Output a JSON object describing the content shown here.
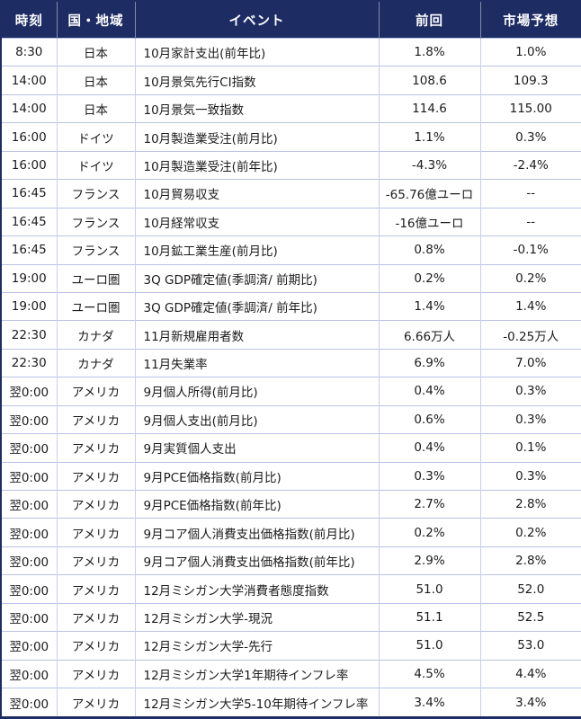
{
  "colors": {
    "header_background": "#1e2c64",
    "header_text": "#ffffff",
    "grid_line": "#b9c3e6",
    "body_text": "#1b1b1b",
    "row_background": "#ffffff"
  },
  "table": {
    "columns": [
      {
        "key": "time",
        "label": "時刻"
      },
      {
        "key": "region",
        "label": "国・地域"
      },
      {
        "key": "event",
        "label": "イベント"
      },
      {
        "key": "previous",
        "label": "前回"
      },
      {
        "key": "forecast",
        "label": "市場予想"
      }
    ],
    "rows": [
      {
        "time": "8:30",
        "region": "日本",
        "event": "10月家計支出(前年比)",
        "previous": "1.8%",
        "forecast": "1.0%"
      },
      {
        "time": "14:00",
        "region": "日本",
        "event": "10月景気先行CI指数",
        "previous": "108.6",
        "forecast": "109.3"
      },
      {
        "time": "14:00",
        "region": "日本",
        "event": "10月景気一致指数",
        "previous": "114.6",
        "forecast": "115.00"
      },
      {
        "time": "16:00",
        "region": "ドイツ",
        "event": "10月製造業受注(前月比)",
        "previous": "1.1%",
        "forecast": "0.3%"
      },
      {
        "time": "16:00",
        "region": "ドイツ",
        "event": "10月製造業受注(前年比)",
        "previous": "-4.3%",
        "forecast": "-2.4%"
      },
      {
        "time": "16:45",
        "region": "フランス",
        "event": "10月貿易収支",
        "previous": "-65.76億ユーロ",
        "forecast": "--"
      },
      {
        "time": "16:45",
        "region": "フランス",
        "event": "10月経常収支",
        "previous": "-16億ユーロ",
        "forecast": "--"
      },
      {
        "time": "16:45",
        "region": "フランス",
        "event": "10月鉱工業生産(前月比)",
        "previous": "0.8%",
        "forecast": "-0.1%"
      },
      {
        "time": "19:00",
        "region": "ユーロ圏",
        "event": "3Q GDP確定値(季調済/ 前期比)",
        "previous": "0.2%",
        "forecast": "0.2%"
      },
      {
        "time": "19:00",
        "region": "ユーロ圏",
        "event": "3Q GDP確定値(季調済/ 前年比)",
        "previous": "1.4%",
        "forecast": "1.4%"
      },
      {
        "time": "22:30",
        "region": "カナダ",
        "event": "11月新規雇用者数",
        "previous": "6.66万人",
        "forecast": "-0.25万人"
      },
      {
        "time": "22:30",
        "region": "カナダ",
        "event": "11月失業率",
        "previous": "6.9%",
        "forecast": "7.0%"
      },
      {
        "time": "翌0:00",
        "region": "アメリカ",
        "event": "9月個人所得(前月比)",
        "previous": "0.4%",
        "forecast": "0.3%"
      },
      {
        "time": "翌0:00",
        "region": "アメリカ",
        "event": "9月個人支出(前月比)",
        "previous": "0.6%",
        "forecast": "0.3%"
      },
      {
        "time": "翌0:00",
        "region": "アメリカ",
        "event": "9月実質個人支出",
        "previous": "0.4%",
        "forecast": "0.1%"
      },
      {
        "time": "翌0:00",
        "region": "アメリカ",
        "event": "9月PCE価格指数(前月比)",
        "previous": "0.3%",
        "forecast": "0.3%"
      },
      {
        "time": "翌0:00",
        "region": "アメリカ",
        "event": "9月PCE価格指数(前年比)",
        "previous": "2.7%",
        "forecast": "2.8%"
      },
      {
        "time": "翌0:00",
        "region": "アメリカ",
        "event": "9月コア個人消費支出価格指数(前月比)",
        "previous": "0.2%",
        "forecast": "0.2%"
      },
      {
        "time": "翌0:00",
        "region": "アメリカ",
        "event": "9月コア個人消費支出価格指数(前年比)",
        "previous": "2.9%",
        "forecast": "2.8%"
      },
      {
        "time": "翌0:00",
        "region": "アメリカ",
        "event": "12月ミシガン大学消費者態度指数",
        "previous": "51.0",
        "forecast": "52.0"
      },
      {
        "time": "翌0:00",
        "region": "アメリカ",
        "event": "12月ミシガン大学-現況",
        "previous": "51.1",
        "forecast": "52.5"
      },
      {
        "time": "翌0:00",
        "region": "アメリカ",
        "event": "12月ミシガン大学-先行",
        "previous": "51.0",
        "forecast": "53.0"
      },
      {
        "time": "翌0:00",
        "region": "アメリカ",
        "event": "12月ミシガン大学1年期待インフレ率",
        "previous": "4.5%",
        "forecast": "4.4%"
      },
      {
        "time": "翌0:00",
        "region": "アメリカ",
        "event": "12月ミシガン大学5-10年期待インフレ率",
        "previous": "3.4%",
        "forecast": "3.4%"
      }
    ]
  }
}
